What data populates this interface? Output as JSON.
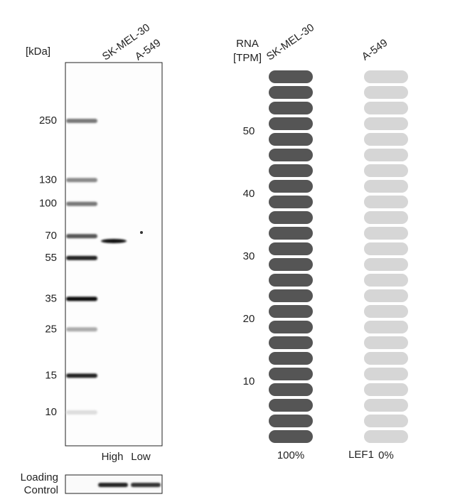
{
  "western_blot": {
    "unit_label": "[kDa]",
    "lanes": [
      "SK-MEL-30",
      "A-549"
    ],
    "lane_levels": [
      "High",
      "Low"
    ],
    "markers": [
      250,
      130,
      100,
      70,
      55,
      35,
      25,
      15,
      10
    ],
    "loading_control": [
      "Loading",
      "Control"
    ]
  },
  "chart_data": {
    "type": "pill",
    "y_label": [
      "RNA",
      "[TPM]"
    ],
    "categories": [
      "SK-MEL-30",
      "A-549"
    ],
    "values": [
      100,
      0
    ],
    "value_labels": [
      "100%",
      "0%"
    ],
    "colors": [
      "#555555",
      "#d6d6d6"
    ],
    "ylim": [
      0,
      60
    ],
    "yticks": [
      10,
      20,
      30,
      40,
      50
    ],
    "gene": "LEF1"
  }
}
